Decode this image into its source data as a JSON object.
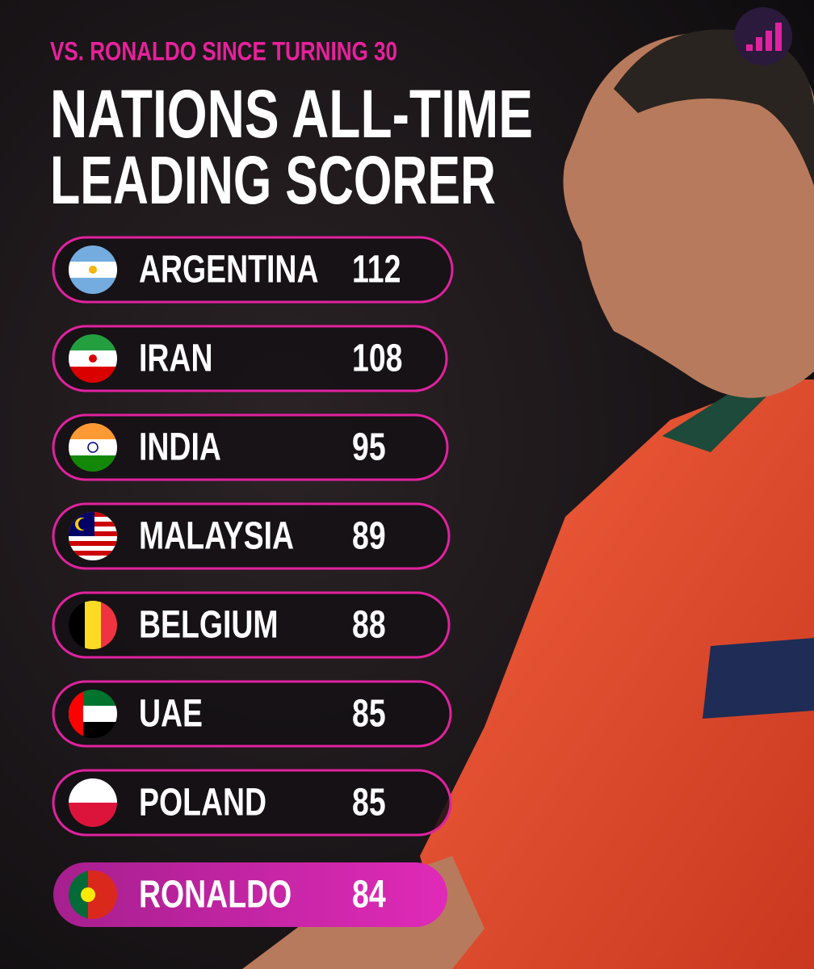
{
  "header": {
    "subtitle": "VS. RONALDO SINCE TURNING 30",
    "title": [
      "NATIONS ALL-TIME",
      "LEADING SCORER"
    ]
  },
  "rows": [
    {
      "name": "ARGENTINA",
      "goals": 112
    },
    {
      "name": "IRAN",
      "goals": 108
    },
    {
      "name": "INDIA",
      "goals": 95
    },
    {
      "name": "MALAYSIA",
      "goals": 89
    },
    {
      "name": "BELGIUM",
      "goals": 88
    },
    {
      "name": "UAE",
      "goals": 85
    },
    {
      "name": "POLAND",
      "goals": 85
    },
    {
      "name": "RONALDO",
      "goals": 84
    }
  ]
}
